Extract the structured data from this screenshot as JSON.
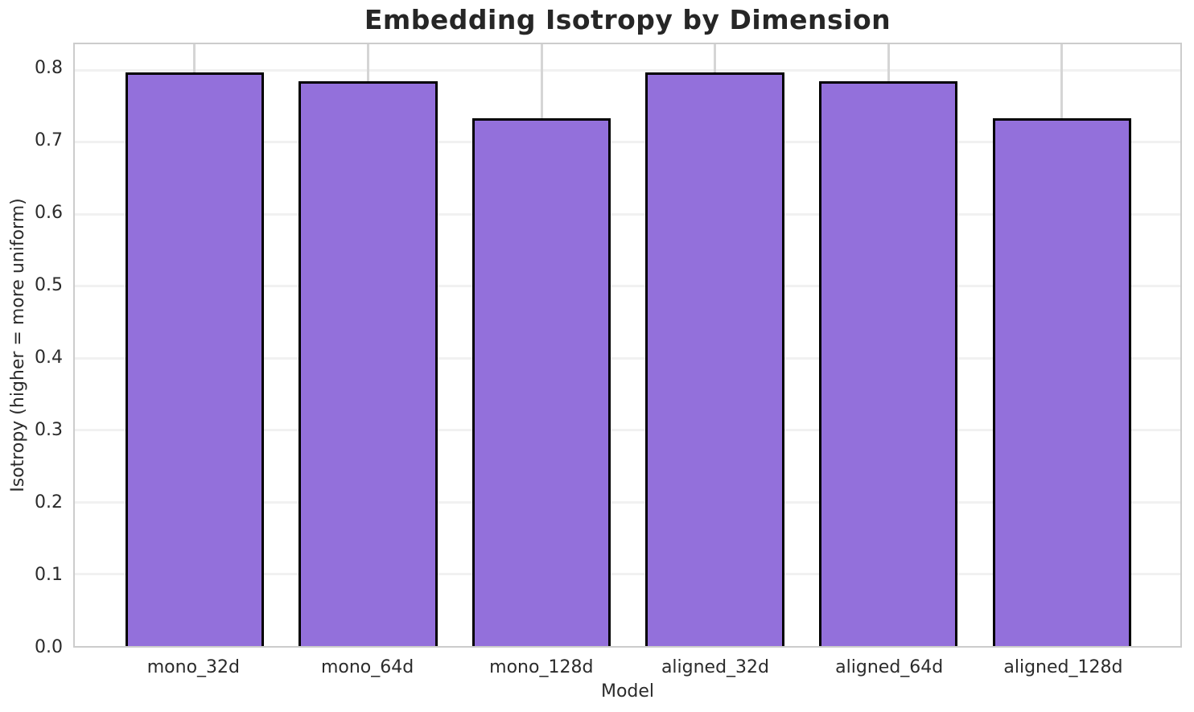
{
  "chart_data": {
    "type": "bar",
    "title": "Embedding Isotropy by Dimension",
    "xlabel": "Model",
    "ylabel": "Isotropy (higher = more uniform)",
    "categories": [
      "mono_32d",
      "mono_64d",
      "mono_128d",
      "aligned_32d",
      "aligned_64d",
      "aligned_128d"
    ],
    "values": [
      0.797,
      0.785,
      0.733,
      0.797,
      0.785,
      0.733
    ],
    "ylim": [
      0,
      0.836
    ],
    "yticks": [
      0.0,
      0.1,
      0.2,
      0.3,
      0.4,
      0.5,
      0.6,
      0.7,
      0.8
    ],
    "ytick_format_decimals": 1,
    "bar_color": "#9370DB",
    "bar_edge_color": "#000000",
    "grid": true,
    "horizontal_grid_color": "#f1f1f1",
    "vertical_grid_color": "#d5d5d5",
    "spine_color": "#cccccc",
    "background_color": "#ffffff",
    "text_color": "#2b2b2b",
    "legend": "none"
  }
}
